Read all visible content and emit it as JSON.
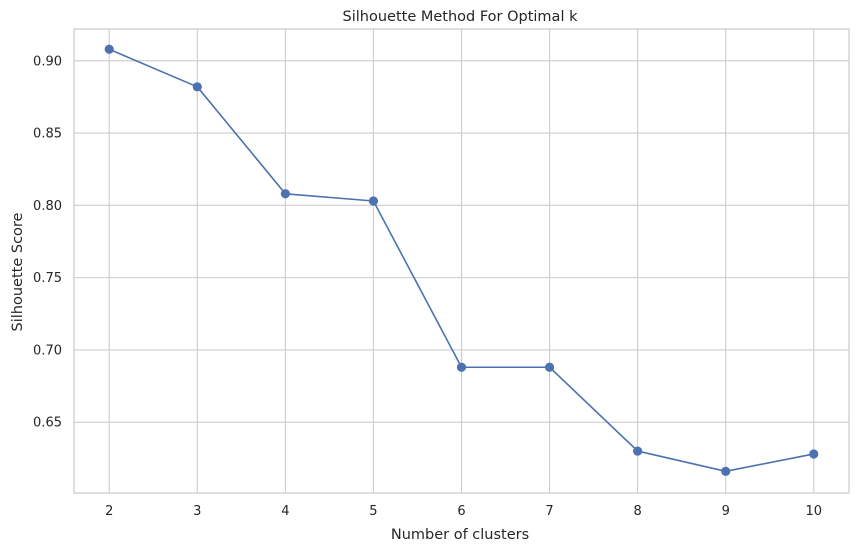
{
  "chart_data": {
    "type": "line",
    "title": "Silhouette Method For Optimal k",
    "xlabel": "Number of clusters",
    "ylabel": "Silhouette Score",
    "x": [
      2,
      3,
      4,
      5,
      6,
      7,
      8,
      9,
      10
    ],
    "series": [
      {
        "values": [
          0.908,
          0.882,
          0.808,
          0.803,
          0.688,
          0.688,
          0.63,
          0.616,
          0.628
        ],
        "color": "#4c72b0",
        "marker": "circle"
      }
    ],
    "xticks": [
      "2",
      "3",
      "4",
      "5",
      "6",
      "7",
      "8",
      "9",
      "10"
    ],
    "yticks": [
      "0.65",
      "0.70",
      "0.75",
      "0.80",
      "0.85",
      "0.90"
    ],
    "ytick_values": [
      0.65,
      0.7,
      0.75,
      0.8,
      0.85,
      0.9
    ],
    "xlim": [
      1.6,
      10.4
    ],
    "ylim": [
      0.601,
      0.922
    ],
    "grid": true,
    "style": {
      "grid_color": "#cccccc",
      "spine_color": "#cccccc",
      "line_color": "#4c72b0"
    }
  }
}
